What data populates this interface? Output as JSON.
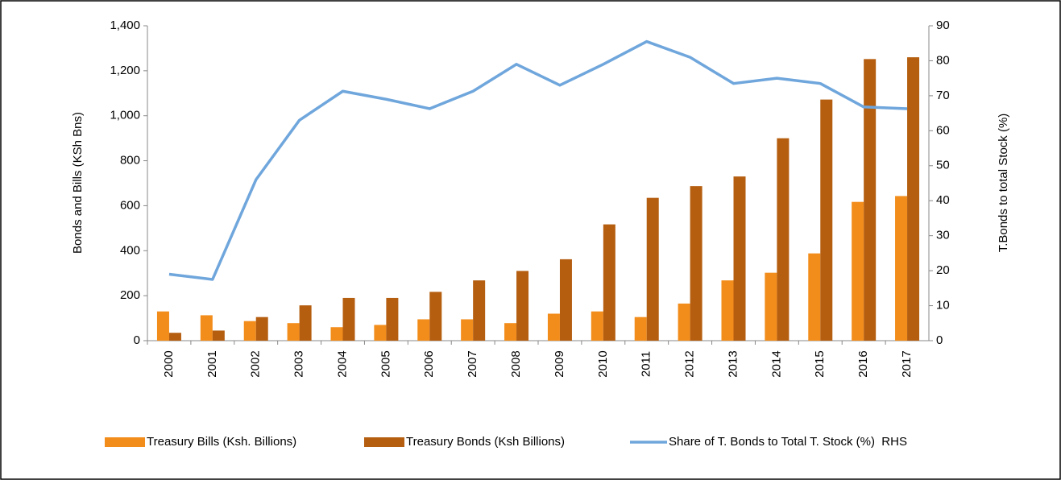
{
  "chart_data": {
    "type": "bar-line",
    "categories": [
      "2000",
      "2001",
      "2002",
      "2003",
      "2004",
      "2005",
      "2006",
      "2007",
      "2008",
      "2009",
      "2010",
      "2011",
      "2012",
      "2013",
      "2014",
      "2015",
      "2016",
      "2017"
    ],
    "series": [
      {
        "name": "Treasury Bills (Ksh. Billions)",
        "color": "#f28c1a",
        "type": "bar",
        "values": [
          130,
          113,
          87,
          78,
          60,
          70,
          95,
          95,
          78,
          120,
          130,
          105,
          165,
          268,
          302,
          388,
          617,
          643
        ]
      },
      {
        "name": "Treasury Bonds (Ksh Billions)",
        "color": "#b55e10",
        "type": "bar",
        "values": [
          35,
          45,
          105,
          157,
          190,
          190,
          217,
          268,
          310,
          362,
          517,
          635,
          687,
          730,
          900,
          1072,
          1252,
          1260
        ]
      },
      {
        "name": "Share of T. Bonds to Total T. Stock (%)  RHS",
        "color": "#6fa6dc",
        "type": "line",
        "axis": "y2",
        "values": [
          19,
          17.5,
          46,
          63,
          71.3,
          69,
          66.3,
          71.3,
          79,
          73,
          79,
          85.5,
          81,
          73.5,
          75,
          73.5,
          66.8,
          66.3
        ]
      }
    ],
    "ylabel": "Bonds and Bills (KSh Bns)",
    "y2label": "T.Bonds to total Stock (%)",
    "ylim": [
      0,
      1400
    ],
    "yticks": [
      0,
      200,
      400,
      600,
      800,
      {
        "value": 1000,
        "label": "1,000"
      },
      {
        "value": 1200,
        "label": "1,200"
      },
      {
        "value": 1400,
        "label": "1,400"
      }
    ],
    "y2lim": [
      0,
      90
    ],
    "y2ticks": [
      0,
      10,
      20,
      30,
      40,
      50,
      60,
      70,
      80,
      90
    ],
    "legend": "bottom"
  }
}
